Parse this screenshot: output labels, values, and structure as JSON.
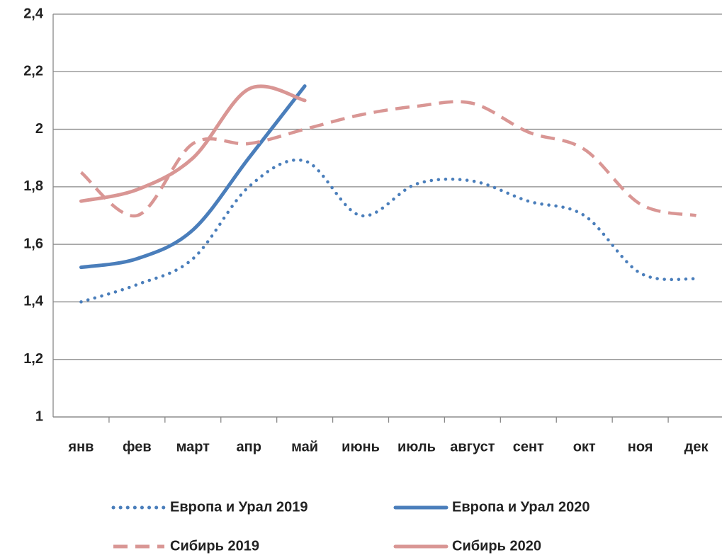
{
  "chart_data": {
    "type": "line",
    "categories": [
      "янв",
      "фев",
      "март",
      "апр",
      "май",
      "июнь",
      "июль",
      "август",
      "сент",
      "окт",
      "ноя",
      "дек"
    ],
    "series": [
      {
        "name": "Европа и Урал 2019",
        "color": "#4a7ebb",
        "style": "dotted",
        "values": [
          1.4,
          1.46,
          1.55,
          1.8,
          1.89,
          1.7,
          1.81,
          1.82,
          1.75,
          1.7,
          1.5,
          1.48
        ]
      },
      {
        "name": "Европа и Урал 2020",
        "color": "#4a7ebb",
        "style": "solid",
        "values": [
          1.52,
          1.55,
          1.65,
          1.9,
          2.15,
          null,
          null,
          null,
          null,
          null,
          null,
          null
        ]
      },
      {
        "name": "Сибирь 2019",
        "color": "#d99694",
        "style": "dashed",
        "values": [
          1.85,
          1.7,
          1.95,
          1.95,
          2.0,
          2.05,
          2.08,
          2.09,
          1.99,
          1.93,
          1.74,
          1.7
        ]
      },
      {
        "name": "Сибирь 2020",
        "color": "#d99694",
        "style": "solid",
        "values": [
          1.75,
          1.79,
          1.9,
          2.14,
          2.1,
          null,
          null,
          null,
          null,
          null,
          null,
          null
        ]
      }
    ],
    "ylim": [
      1,
      2.4
    ],
    "yticks": [
      1,
      {
        "value": 1.2,
        "label": "1,2"
      },
      {
        "value": 1.4,
        "label": "1,4"
      },
      {
        "value": 1.6,
        "label": "1,6"
      },
      {
        "value": 1.8,
        "label": "1,8"
      },
      2,
      {
        "value": 2.2,
        "label": "2,2"
      },
      {
        "value": 2.4,
        "label": "2,4"
      }
    ],
    "grid": true,
    "smooth": true,
    "legend": "bottom"
  }
}
